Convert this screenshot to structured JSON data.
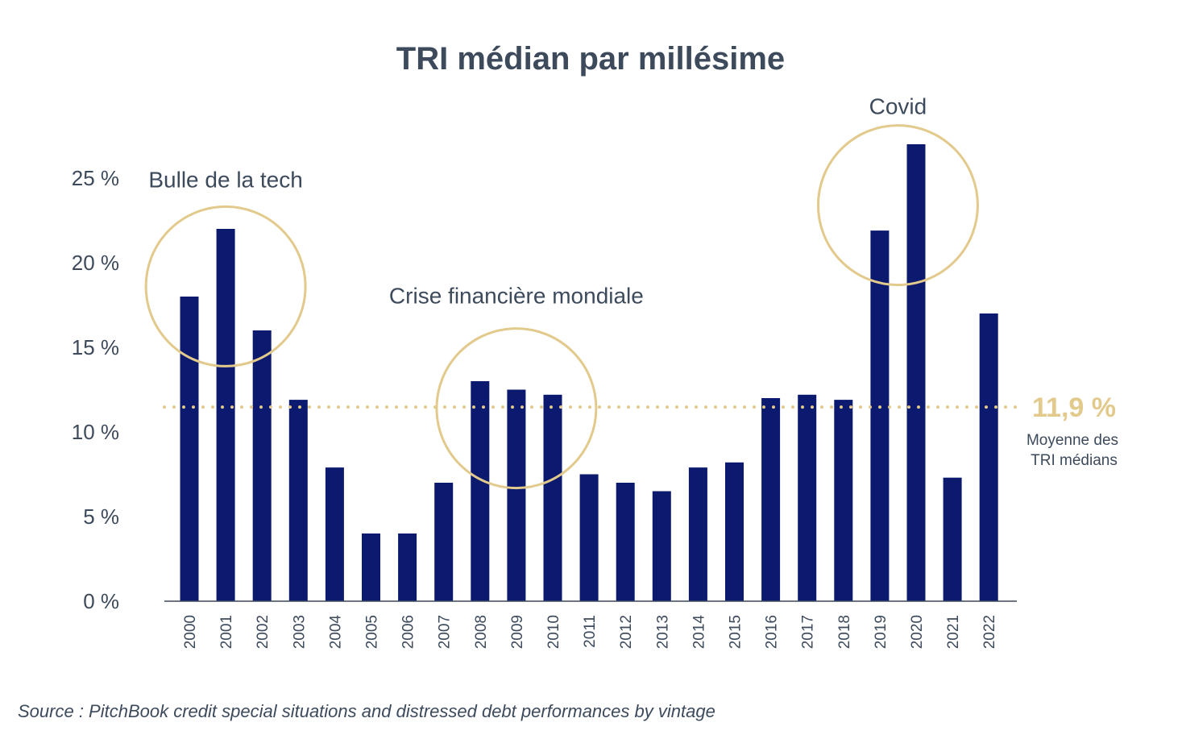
{
  "chart_data": {
    "type": "bar",
    "title": "TRI médian par millésime",
    "categories": [
      "2000",
      "2001",
      "2002",
      "2003",
      "2004",
      "2005",
      "2006",
      "2007",
      "2008",
      "2009",
      "2010",
      "2011",
      "2012",
      "2013",
      "2014",
      "2015",
      "2016",
      "2017",
      "2018",
      "2019",
      "2020",
      "2021",
      "2022"
    ],
    "values": [
      18,
      22,
      16,
      11.9,
      7.9,
      4,
      4,
      7,
      13,
      12.5,
      12.2,
      7.5,
      7,
      6.5,
      7.9,
      8.2,
      12,
      12.2,
      11.9,
      21.9,
      27,
      7.3,
      17
    ],
    "ylim": [
      0,
      27
    ],
    "yticks": [
      0,
      5,
      10,
      15,
      20,
      25
    ],
    "ytick_labels": [
      "0 %",
      "5 %",
      "10 %",
      "15 %",
      "20 %",
      "25 %"
    ],
    "xlabel": "",
    "ylabel": "",
    "bar_color": "#0b1a6e",
    "average": {
      "value": 11.9,
      "label_value": "11,9 %",
      "label_line1": "Moyenne des",
      "label_line2": "TRI médians",
      "color": "#e2c98c"
    },
    "annotations": [
      {
        "text": "Bulle de la tech",
        "categories": [
          "2000",
          "2001",
          "2002"
        ],
        "center_value": 18.6
      },
      {
        "text": "Crise financière mondiale",
        "categories": [
          "2008",
          "2009",
          "2010"
        ],
        "center_value": 11.4
      },
      {
        "text": "Covid",
        "categories": [
          "2019",
          "2020"
        ],
        "center_value": 23.4
      }
    ],
    "annotation_color": "#e2c98c",
    "grid": false,
    "legend": "none"
  },
  "source": "Source : PitchBook credit special situations and distressed debt performances by vintage"
}
